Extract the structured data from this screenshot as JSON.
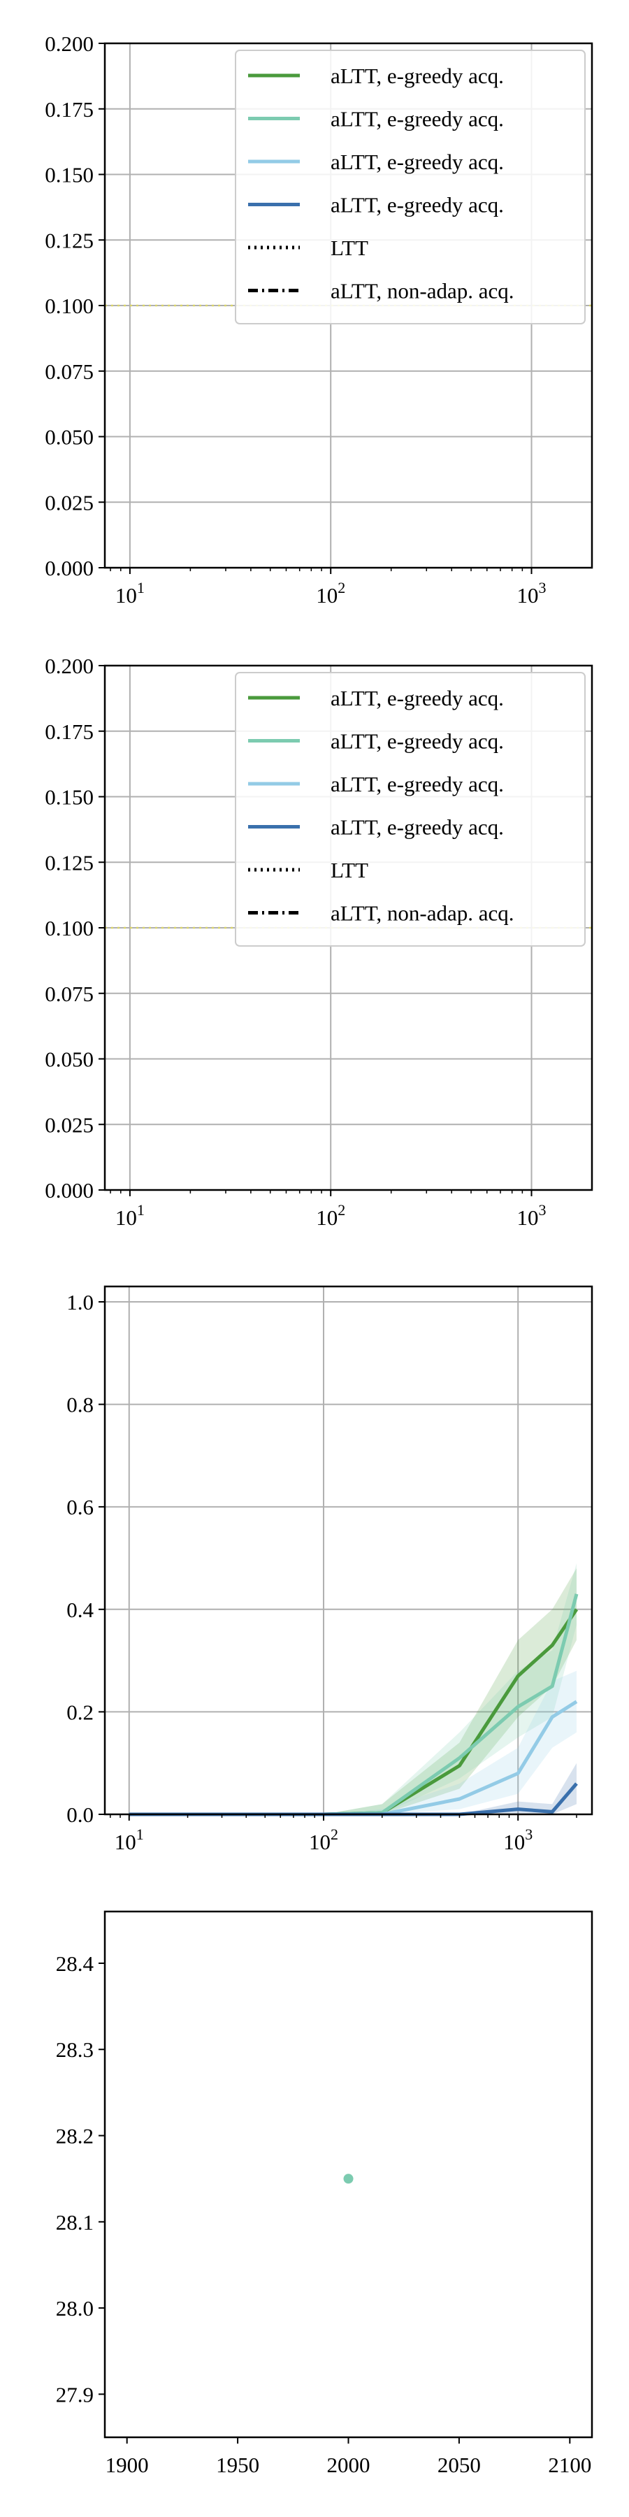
{
  "colors": {
    "green": "#4a9a3c",
    "teal": "#7ccbb0",
    "light_blue": "#93cbe6",
    "dark_blue": "#3a70ac",
    "black": "#000000",
    "yellow": "#d8d36a",
    "grid": "#b0b0b0"
  },
  "chart_data": [
    {
      "type": "line",
      "x_scale": "log",
      "xlim": [
        7.5,
        2000
      ],
      "ylim": [
        0,
        0.2
      ],
      "x_ticks": [
        {
          "value": 10,
          "base": "10",
          "exp": "1"
        },
        {
          "value": 100,
          "base": "10",
          "exp": "2"
        },
        {
          "value": 1000,
          "base": "10",
          "exp": "3"
        }
      ],
      "y_ticks": [
        "0.000",
        "0.025",
        "0.050",
        "0.075",
        "0.100",
        "0.125",
        "0.150",
        "0.175",
        "0.200"
      ],
      "grid": true,
      "legend_position": "top-right",
      "legend": [
        {
          "label": "aLTT, e-greedy acq.",
          "style": "solid",
          "color": "green"
        },
        {
          "label": "aLTT, e-greedy acq.",
          "style": "solid",
          "color": "teal"
        },
        {
          "label": "aLTT, e-greedy acq.",
          "style": "solid",
          "color": "light_blue"
        },
        {
          "label": "aLTT, e-greedy acq.",
          "style": "solid",
          "color": "dark_blue"
        },
        {
          "label": "LTT",
          "style": "dotted",
          "color": "black"
        },
        {
          "label": "aLTT, non-adap. acq.",
          "style": "dashdot",
          "color": "black"
        }
      ],
      "reference_lines": [
        {
          "y": 0.1,
          "style": "dotted",
          "color": "yellow"
        }
      ],
      "series": []
    },
    {
      "type": "line",
      "x_scale": "log",
      "xlim": [
        7.5,
        2000
      ],
      "ylim": [
        0,
        0.2
      ],
      "x_ticks": [
        {
          "value": 10,
          "base": "10",
          "exp": "1"
        },
        {
          "value": 100,
          "base": "10",
          "exp": "2"
        },
        {
          "value": 1000,
          "base": "10",
          "exp": "3"
        }
      ],
      "y_ticks": [
        "0.000",
        "0.025",
        "0.050",
        "0.075",
        "0.100",
        "0.125",
        "0.150",
        "0.175",
        "0.200"
      ],
      "grid": true,
      "legend_position": "top-right",
      "legend": [
        {
          "label": "aLTT, e-greedy acq.",
          "style": "solid",
          "color": "green"
        },
        {
          "label": "aLTT, e-greedy acq.",
          "style": "solid",
          "color": "teal"
        },
        {
          "label": "aLTT, e-greedy acq.",
          "style": "solid",
          "color": "light_blue"
        },
        {
          "label": "aLTT, e-greedy acq.",
          "style": "solid",
          "color": "dark_blue"
        },
        {
          "label": "LTT",
          "style": "dotted",
          "color": "black"
        },
        {
          "label": "aLTT, non-adap. acq.",
          "style": "dashdot",
          "color": "black"
        }
      ],
      "reference_lines": [
        {
          "y": 0.1,
          "style": "dotted",
          "color": "yellow"
        }
      ],
      "series": []
    },
    {
      "type": "line",
      "x_scale": "log",
      "xlim": [
        7.5,
        2400
      ],
      "ylim": [
        0,
        1.03
      ],
      "x_ticks": [
        {
          "value": 10,
          "base": "10",
          "exp": "1"
        },
        {
          "value": 100,
          "base": "10",
          "exp": "2"
        },
        {
          "value": 1000,
          "base": "10",
          "exp": "3"
        }
      ],
      "y_ticks": [
        "0.0",
        "0.2",
        "0.4",
        "0.6",
        "0.8",
        "1.0"
      ],
      "grid": true,
      "legend": [],
      "series": [
        {
          "color": "green",
          "x": [
            10,
            100,
            200,
            500,
            1000,
            1500,
            2000
          ],
          "y": [
            0.0,
            0.0,
            0.003,
            0.095,
            0.27,
            0.33,
            0.4
          ],
          "lower": [
            0.0,
            0.0,
            0.0,
            0.05,
            0.19,
            0.25,
            0.34
          ],
          "upper": [
            0.0,
            0.0,
            0.02,
            0.14,
            0.34,
            0.4,
            0.48
          ]
        },
        {
          "color": "teal",
          "x": [
            10,
            100,
            200,
            500,
            1000,
            1500,
            2000
          ],
          "y": [
            0.0,
            0.0,
            0.003,
            0.11,
            0.21,
            0.25,
            0.43
          ],
          "lower": [
            0.0,
            0.0,
            0.0,
            0.07,
            0.15,
            0.19,
            0.37
          ],
          "upper": [
            0.0,
            0.0,
            0.02,
            0.16,
            0.28,
            0.32,
            0.49
          ]
        },
        {
          "color": "light_blue",
          "x": [
            10,
            100,
            200,
            500,
            1000,
            1500,
            2000
          ],
          "y": [
            0.0,
            0.0,
            0.0,
            0.03,
            0.08,
            0.19,
            0.22
          ],
          "lower": [
            0.0,
            0.0,
            0.0,
            0.01,
            0.04,
            0.13,
            0.16
          ],
          "upper": [
            0.0,
            0.0,
            0.01,
            0.06,
            0.13,
            0.26,
            0.28
          ]
        },
        {
          "color": "dark_blue",
          "x": [
            10,
            100,
            200,
            500,
            1000,
            1500,
            2000
          ],
          "y": [
            0.0,
            0.0,
            0.0,
            0.0,
            0.01,
            0.005,
            0.06
          ],
          "lower": [
            0.0,
            0.0,
            0.0,
            0.0,
            0.0,
            0.0,
            0.02
          ],
          "upper": [
            0.0,
            0.0,
            0.0,
            0.0,
            0.025,
            0.02,
            0.1
          ]
        }
      ]
    },
    {
      "type": "scatter",
      "x_scale": "linear",
      "xlim": [
        1890,
        2110
      ],
      "ylim": [
        27.85,
        28.46
      ],
      "x_ticks": [
        {
          "value": 1900,
          "label": "1900"
        },
        {
          "value": 1950,
          "label": "1950"
        },
        {
          "value": 2000,
          "label": "2000"
        },
        {
          "value": 2050,
          "label": "2050"
        },
        {
          "value": 2100,
          "label": "2100"
        }
      ],
      "y_ticks": [
        "27.9",
        "28.0",
        "28.1",
        "28.2",
        "28.3",
        "28.4"
      ],
      "grid": false,
      "legend": [],
      "points": [
        {
          "x": 2000,
          "y": 28.15,
          "color": "teal"
        }
      ]
    }
  ]
}
